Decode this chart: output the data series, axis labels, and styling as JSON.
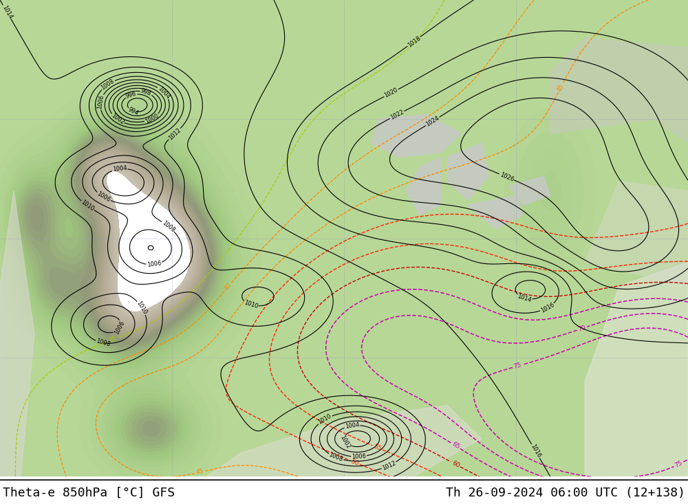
{
  "title_left": "Theta-e 850hPa [°C] GFS",
  "title_right": "Th 26-09-2024 06:00 UTC (12+138)",
  "bg_green": "#b8d898",
  "bg_dark_green": "#98c878",
  "bg_gray_mountain": "#c0beb0",
  "bg_white_ocean": "#e8e8e8",
  "bg_lake": "#d0d0d0",
  "black_color": "#000000",
  "yellow_green_color": "#aacc00",
  "orange_color": "#ff8800",
  "red_color": "#ff2200",
  "darkred_color": "#cc0000",
  "magenta_color": "#cc00aa",
  "footer_bg": "#ffffff",
  "title_fontsize": 13,
  "label_fontsize": 6.5,
  "grid_color": "#9999bb"
}
